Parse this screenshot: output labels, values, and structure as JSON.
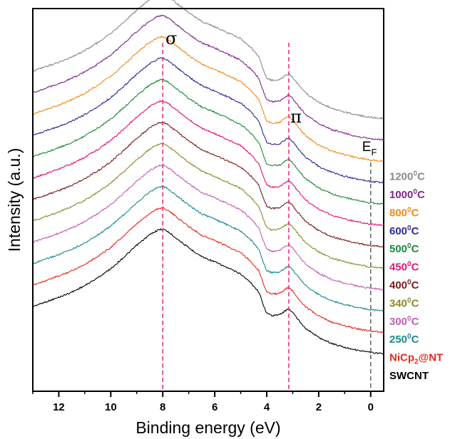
{
  "chart_data": {
    "type": "line",
    "xlabel": "Binding energy (eV)",
    "ylabel": "Intensity (a.u.)",
    "xlim": [
      13,
      -0.5
    ],
    "x_reversed": true,
    "x_ticks": [
      12,
      10,
      8,
      6,
      4,
      2,
      0
    ],
    "y_ticks": [],
    "grid": false,
    "annotations": [
      {
        "text": "σ",
        "x": 8.0
      },
      {
        "text": "π",
        "x": 3.15
      },
      {
        "text": "E",
        "sub": "F",
        "x": 0
      }
    ],
    "reference_lines": [
      {
        "x": 8.0,
        "color": "#e8337a",
        "style": "dashed"
      },
      {
        "x": 3.15,
        "color": "#e8337a",
        "style": "dashed"
      },
      {
        "x": 0,
        "color": "#666666",
        "style": "dashed"
      }
    ],
    "series": [
      {
        "name": "SWCNT",
        "label_base": "SWCNT",
        "label_sup": "",
        "label_sub": "",
        "label_tail": "",
        "color": "#000000",
        "offset": 0
      },
      {
        "name": "NiCp2@NT",
        "label_base": "NiCp",
        "label_sup": "",
        "label_sub": "2",
        "label_tail": "@NT",
        "color": "#e8281e",
        "offset": 1
      },
      {
        "name": "250⁰C",
        "label_base": "250",
        "label_sup": "0",
        "label_sub": "",
        "label_tail": "C",
        "color": "#1a8a8a",
        "offset": 2
      },
      {
        "name": "300⁰C",
        "label_base": "300",
        "label_sup": "0",
        "label_sub": "",
        "label_tail": "C",
        "color": "#c25fb4",
        "offset": 3
      },
      {
        "name": "340⁰C",
        "label_base": "340",
        "label_sup": "0",
        "label_sub": "",
        "label_tail": "C",
        "color": "#8a8a2a",
        "offset": 4
      },
      {
        "name": "400⁰C",
        "label_base": "400",
        "label_sup": "0",
        "label_sub": "",
        "label_tail": "C",
        "color": "#7a1a1a",
        "offset": 5
      },
      {
        "name": "450⁰C",
        "label_base": "450",
        "label_sup": "0",
        "label_sub": "",
        "label_tail": "C",
        "color": "#e0157a",
        "offset": 6
      },
      {
        "name": "500⁰C",
        "label_base": "500",
        "label_sup": "0",
        "label_sub": "",
        "label_tail": "C",
        "color": "#1a8a3a",
        "offset": 7
      },
      {
        "name": "600⁰C",
        "label_base": "600",
        "label_sup": "0",
        "label_sub": "",
        "label_tail": "C",
        "color": "#2a2a9a",
        "offset": 8
      },
      {
        "name": "800⁰C",
        "label_base": "800",
        "label_sup": "0",
        "label_sub": "",
        "label_tail": "C",
        "color": "#f28a1a",
        "offset": 9
      },
      {
        "name": "1000⁰C",
        "label_base": "1000",
        "label_sup": "0",
        "label_sub": "",
        "label_tail": "C",
        "color": "#7a2a8a",
        "offset": 10
      },
      {
        "name": "1200⁰C",
        "label_base": "1200",
        "label_sup": "0",
        "label_sub": "",
        "label_tail": "C",
        "color": "#8a8a8a",
        "offset": 11
      }
    ],
    "profile_x": [
      13,
      12.5,
      12,
      11.5,
      11,
      10.5,
      10,
      9.5,
      9,
      8.5,
      8.2,
      8,
      7.8,
      7.5,
      7,
      6.5,
      6,
      5.5,
      5,
      4.6,
      4.3,
      4.15,
      4.0,
      3.8,
      3.5,
      3.3,
      3.15,
      3.0,
      2.8,
      2.5,
      2.0,
      1.5,
      1.0,
      0.5,
      0,
      -0.5
    ],
    "profile_y": [
      0.0,
      0.12,
      0.24,
      0.38,
      0.55,
      0.76,
      1.0,
      1.3,
      1.62,
      1.9,
      2.02,
      2.05,
      1.98,
      1.82,
      1.55,
      1.32,
      1.18,
      1.02,
      0.86,
      0.62,
      0.38,
      0.08,
      -0.18,
      -0.24,
      -0.22,
      -0.12,
      -0.06,
      -0.16,
      -0.34,
      -0.58,
      -0.82,
      -0.98,
      -1.08,
      -1.16,
      -1.22,
      -1.25
    ]
  }
}
